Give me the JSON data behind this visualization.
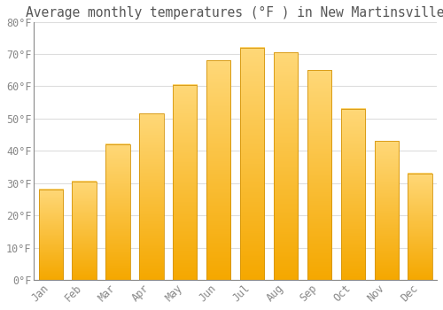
{
  "title": "Average monthly temperatures (°F ) in New Martinsville",
  "months": [
    "Jan",
    "Feb",
    "Mar",
    "Apr",
    "May",
    "Jun",
    "Jul",
    "Aug",
    "Sep",
    "Oct",
    "Nov",
    "Dec"
  ],
  "values": [
    28,
    30.5,
    42,
    51.5,
    60.5,
    68,
    72,
    70.5,
    65,
    53,
    43,
    33
  ],
  "bar_color_top": "#FFD060",
  "bar_color_bottom": "#F5A800",
  "bar_edge_color": "#D4940A",
  "background_color": "#FFFFFF",
  "grid_color": "#DDDDDD",
  "text_color": "#888888",
  "title_color": "#555555",
  "ylim": [
    0,
    80
  ],
  "yticks": [
    0,
    10,
    20,
    30,
    40,
    50,
    60,
    70,
    80
  ],
  "ytick_labels": [
    "0°F",
    "10°F",
    "20°F",
    "30°F",
    "40°F",
    "50°F",
    "60°F",
    "70°F",
    "80°F"
  ],
  "title_fontsize": 10.5,
  "tick_fontsize": 8.5,
  "font_family": "monospace"
}
